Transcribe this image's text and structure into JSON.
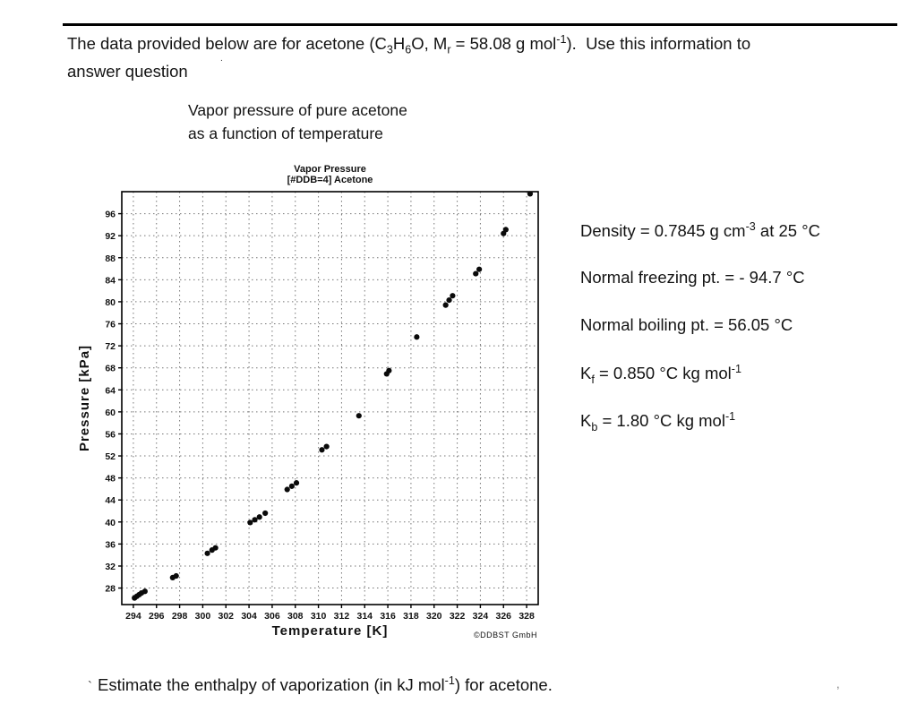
{
  "intro": {
    "line1": "The data provided below are for acetone (C<sub>3</sub>H<sub>6</sub>O, M<sub>r</sub> = 58.08 g mol<sup>-1</sup>).&nbsp; Use this information to",
    "line2": "answer question"
  },
  "caption": {
    "line1": "Vapor pressure of pure acetone",
    "line2": "as a function of temperature"
  },
  "facts": [
    {
      "text": "Density = 0.7845 g cm<sup>-3</sup> at 25 °C"
    },
    {
      "text": "Normal freezing pt. = - 94.7 °C"
    },
    {
      "text": "Normal boiling pt. = 56.05 °C"
    },
    {
      "text": "K<sub>f</sub> = 0.850 °C kg mol<sup>-1</sup>"
    },
    {
      "text": "K<sub>b</sub> = 1.80 °C kg mol<sup>-1</sup>"
    }
  ],
  "question": {
    "text": "Estimate the enthalpy of vaporization (in kJ mol<sup>-1</sup>) for acetone."
  },
  "artifacts": {
    "mark1": ".",
    "mark2": "`",
    "mark3": ","
  },
  "chart_data": {
    "type": "scatter",
    "title_lines": [
      "Vapor Pressure",
      "[#DDB=4] Acetone"
    ],
    "xlabel": "Temperature  [K]",
    "ylabel": "Pressure [kPa]",
    "watermark": "©DDBST GmbH",
    "grid": "dotted",
    "legend": "none",
    "xlim": [
      293,
      329
    ],
    "ylim": [
      25,
      100
    ],
    "x_ticks": [
      294,
      296,
      298,
      300,
      302,
      304,
      306,
      308,
      310,
      312,
      314,
      316,
      318,
      320,
      322,
      324,
      326,
      328
    ],
    "y_ticks": [
      28,
      32,
      36,
      40,
      44,
      48,
      52,
      56,
      60,
      64,
      68,
      72,
      76,
      80,
      84,
      88,
      92,
      96
    ],
    "points": [
      [
        294.1,
        26.2
      ],
      [
        294.3,
        26.5
      ],
      [
        294.5,
        26.8
      ],
      [
        294.7,
        27.1
      ],
      [
        295.0,
        27.4
      ],
      [
        297.4,
        29.9
      ],
      [
        297.7,
        30.2
      ],
      [
        300.4,
        34.3
      ],
      [
        300.8,
        34.9
      ],
      [
        301.1,
        35.3
      ],
      [
        304.1,
        39.9
      ],
      [
        304.5,
        40.4
      ],
      [
        304.9,
        40.9
      ],
      [
        305.4,
        41.6
      ],
      [
        307.3,
        45.9
      ],
      [
        307.7,
        46.5
      ],
      [
        308.1,
        47.1
      ],
      [
        310.3,
        53.1
      ],
      [
        310.7,
        53.7
      ],
      [
        313.5,
        59.3
      ],
      [
        315.9,
        66.9
      ],
      [
        316.1,
        67.5
      ],
      [
        318.5,
        73.6
      ],
      [
        321.0,
        79.4
      ],
      [
        321.3,
        80.3
      ],
      [
        321.6,
        81.1
      ],
      [
        323.6,
        85.1
      ],
      [
        323.9,
        85.9
      ],
      [
        326.0,
        92.4
      ],
      [
        326.2,
        93.1
      ],
      [
        328.3,
        99.6
      ]
    ]
  }
}
